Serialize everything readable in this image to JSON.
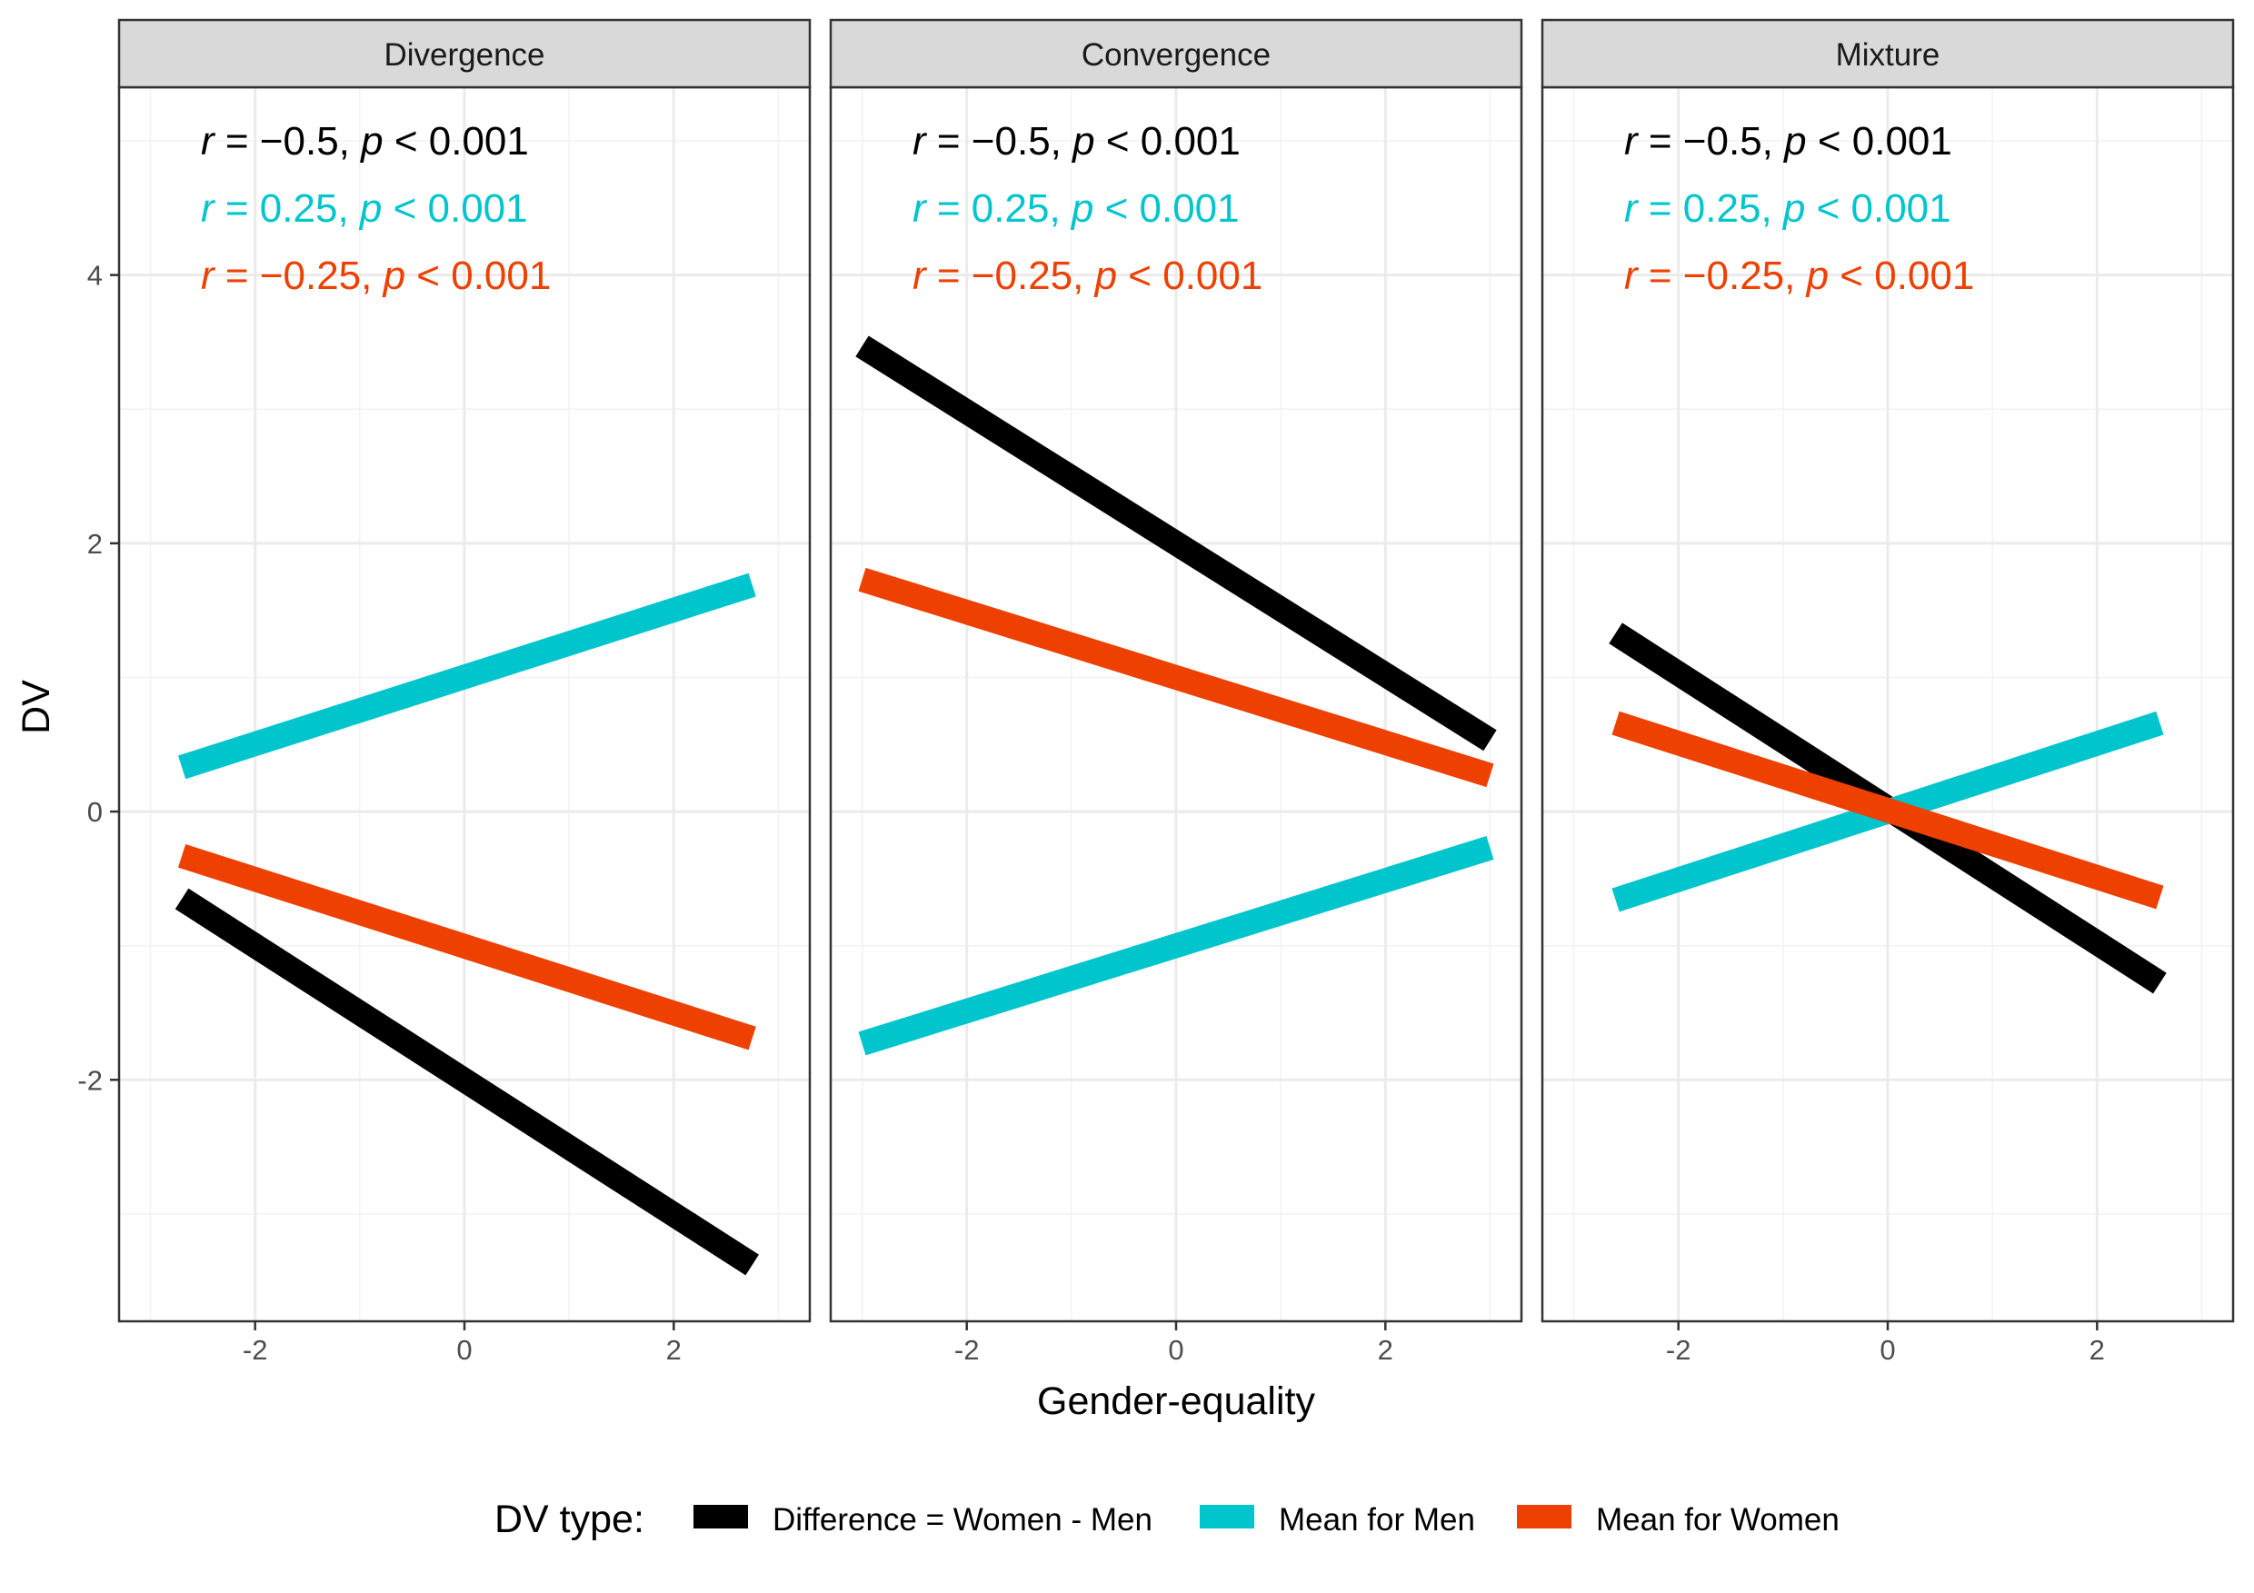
{
  "chart_data": {
    "type": "line",
    "xlabel": "Gender-equality",
    "ylabel": "DV",
    "xlim": [
      -3.3,
      3.3
    ],
    "ylim": [
      -3.8,
      5.4
    ],
    "x_ticks": [
      -2,
      0,
      2
    ],
    "x_tick_labels": [
      "-2",
      "0",
      "2"
    ],
    "y_ticks": [
      -2,
      0,
      2,
      4
    ],
    "y_tick_labels": [
      "-2",
      "0",
      "2",
      "4"
    ],
    "grid": true,
    "legend": {
      "title": "DV type:",
      "position": "bottom",
      "entries": [
        {
          "label": "Difference = Women - Men",
          "color": "#000000",
          "key": "diff"
        },
        {
          "label": "Mean for Men",
          "color": "#00C5CD",
          "key": "men"
        },
        {
          "label": "Mean for Women",
          "color": "#EE4000",
          "key": "women"
        }
      ]
    },
    "panels": [
      {
        "title": "Divergence",
        "series": [
          {
            "key": "diff",
            "x": [
              -2.7,
              2.75
            ],
            "y": [
              -0.65,
              -3.38
            ]
          },
          {
            "key": "men",
            "x": [
              -2.7,
              2.75
            ],
            "y": [
              0.33,
              1.69
            ]
          },
          {
            "key": "women",
            "x": [
              -2.7,
              2.75
            ],
            "y": [
              -0.33,
              -1.69
            ]
          }
        ],
        "annotations": [
          {
            "r": "r = −0.5, ",
            "p": "p < 0.001",
            "key": "diff"
          },
          {
            "r": "r = 0.25, ",
            "p": "p < 0.001",
            "key": "men"
          },
          {
            "r": "r = −0.25, ",
            "p": "p < 0.001",
            "key": "women"
          }
        ]
      },
      {
        "title": "Convergence",
        "series": [
          {
            "key": "diff",
            "x": [
              -3.0,
              3.0
            ],
            "y": [
              3.47,
              0.53
            ]
          },
          {
            "key": "men",
            "x": [
              -3.0,
              3.0
            ],
            "y": [
              -1.73,
              -0.27
            ]
          },
          {
            "key": "women",
            "x": [
              -3.0,
              3.0
            ],
            "y": [
              1.73,
              0.27
            ]
          }
        ],
        "annotations": [
          {
            "r": "r = −0.5, ",
            "p": "p < 0.001",
            "key": "diff"
          },
          {
            "r": "r = 0.25, ",
            "p": "p < 0.001",
            "key": "men"
          },
          {
            "r": "r = −0.25, ",
            "p": "p < 0.001",
            "key": "women"
          }
        ]
      },
      {
        "title": "Mixture",
        "series": [
          {
            "key": "diff",
            "x": [
              -2.6,
              2.6
            ],
            "y": [
              1.33,
              -1.28
            ]
          },
          {
            "key": "men",
            "x": [
              -2.6,
              2.6
            ],
            "y": [
              -0.66,
              0.66
            ]
          },
          {
            "key": "women",
            "x": [
              -2.6,
              2.6
            ],
            "y": [
              0.66,
              -0.64
            ]
          }
        ],
        "annotations": [
          {
            "r": "r = −0.5, ",
            "p": "p < 0.001",
            "key": "diff"
          },
          {
            "r": "r = 0.25, ",
            "p": "p < 0.001",
            "key": "men"
          },
          {
            "r": "r = −0.25, ",
            "p": "p < 0.001",
            "key": "women"
          }
        ]
      }
    ]
  }
}
